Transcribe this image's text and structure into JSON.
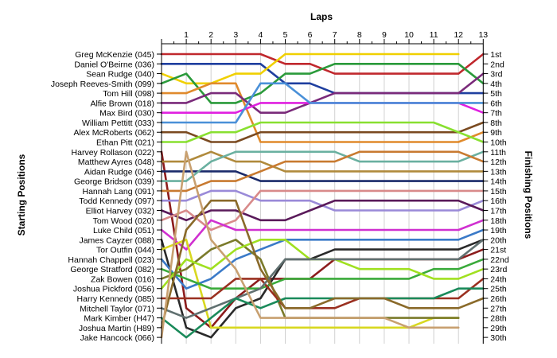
{
  "chart_data": {
    "type": "line",
    "title": "Laps",
    "ylabel_left": "Starting Positions",
    "ylabel_right": "Finishing Positions",
    "laps": [
      1,
      2,
      3,
      4,
      5,
      6,
      7,
      8,
      9,
      10,
      11,
      12,
      13
    ],
    "grid": true,
    "finishing_labels": [
      "1st",
      "2nd",
      "3rd",
      "4th",
      "5th",
      "6th",
      "7th",
      "8th",
      "9th",
      "10th",
      "11th",
      "12th",
      "13th",
      "14th",
      "15th",
      "16th",
      "17th",
      "18th",
      "19th",
      "20th",
      "21st",
      "22nd",
      "23rd",
      "24th",
      "25th",
      "26th",
      "27th",
      "28th",
      "29th",
      "30th"
    ],
    "series": [
      {
        "name": "Greg McKenzie (045)",
        "color": "#c0282d",
        "values": [
          1,
          1,
          1,
          1,
          2,
          2,
          3,
          3,
          3,
          3,
          3,
          3,
          1
        ]
      },
      {
        "name": "Daniel O'Beirne (036)",
        "color": "#1f3f9f",
        "values": [
          2,
          2,
          2,
          2,
          4,
          4,
          5,
          5,
          5,
          5,
          5,
          5,
          5
        ]
      },
      {
        "name": "Sean Rudge (040)",
        "color": "#f0d000",
        "values": [
          4,
          4,
          3,
          3,
          1,
          1,
          1,
          1,
          1,
          1,
          1,
          1,
          null
        ]
      },
      {
        "name": "Joseph Reeves-Smith (099)",
        "color": "#2a9a3a",
        "values": [
          3,
          6,
          6,
          5,
          3,
          3,
          2,
          2,
          2,
          2,
          2,
          2,
          4
        ]
      },
      {
        "name": "Tom Hill (098)",
        "color": "#e08a2c",
        "values": [
          5,
          4,
          4,
          10,
          10,
          10,
          10,
          10,
          10,
          10,
          10,
          10,
          9
        ]
      },
      {
        "name": "Alfie Brown (018)",
        "color": "#7a2a7a",
        "values": [
          6,
          5,
          5,
          7,
          7,
          6,
          5,
          5,
          5,
          5,
          5,
          5,
          3
        ]
      },
      {
        "name": "Max Bird (030)",
        "color": "#e020e0",
        "values": [
          7,
          7,
          7,
          6,
          6,
          6,
          6,
          6,
          6,
          6,
          6,
          6,
          7
        ]
      },
      {
        "name": "William Pettitt (033)",
        "color": "#4a90d8",
        "values": [
          8,
          8,
          8,
          4,
          4,
          6,
          6,
          6,
          6,
          6,
          6,
          6,
          6
        ]
      },
      {
        "name": "Alex McRoberts (062)",
        "color": "#7a4a20",
        "values": [
          9,
          10,
          10,
          9,
          9,
          9,
          9,
          9,
          9,
          9,
          9,
          9,
          8
        ]
      },
      {
        "name": "Ethan Pitt (021)",
        "color": "#88e030",
        "values": [
          10,
          9,
          9,
          8,
          8,
          8,
          8,
          8,
          8,
          8,
          8,
          9,
          10
        ]
      },
      {
        "name": "Harvey Rollason (022)",
        "color": "#8c1c1c",
        "values": [
          27,
          29,
          26,
          24,
          24,
          24,
          22,
          22,
          22,
          22,
          22,
          22,
          21
        ]
      },
      {
        "name": "Matthew Ayres (048)",
        "color": "#b08a3c",
        "values": [
          12,
          11,
          12,
          12,
          13,
          13,
          13,
          13,
          13,
          13,
          13,
          13,
          13
        ]
      },
      {
        "name": "Aidan Rudge (046)",
        "color": "#1a2a6a",
        "values": [
          13,
          13,
          13,
          14,
          14,
          14,
          14,
          14,
          14,
          14,
          14,
          14,
          14
        ]
      },
      {
        "name": "George Bridson (039)",
        "color": "#6ab0a0",
        "values": [
          14,
          12,
          11,
          11,
          11,
          11,
          11,
          12,
          12,
          12,
          12,
          12,
          11
        ]
      },
      {
        "name": "Hannah Lang (091)",
        "color": "#c87a30",
        "values": [
          15,
          14,
          14,
          13,
          12,
          12,
          12,
          11,
          11,
          11,
          11,
          11,
          12
        ]
      },
      {
        "name": "Todd Kennedy (097)",
        "color": "#9a8ad8",
        "values": [
          16,
          15,
          15,
          16,
          16,
          16,
          17,
          17,
          17,
          17,
          17,
          17,
          16
        ]
      },
      {
        "name": "Elliot Harvey (032)",
        "color": "#5a1a5a",
        "values": [
          18,
          17,
          17,
          18,
          18,
          17,
          16,
          16,
          16,
          16,
          16,
          16,
          17
        ]
      },
      {
        "name": "Tom Wood (020)",
        "color": "#d88a8a",
        "values": [
          17,
          19,
          18,
          15,
          15,
          15,
          15,
          15,
          15,
          15,
          15,
          15,
          15
        ]
      },
      {
        "name": "Luke Child (051)",
        "color": "#d030d0",
        "values": [
          21,
          18,
          19,
          19,
          19,
          19,
          19,
          19,
          19,
          19,
          19,
          19,
          18
        ]
      },
      {
        "name": "James Cayzer (088)",
        "color": "#2a2a2a",
        "values": [
          29,
          30,
          27,
          26,
          22,
          22,
          21,
          21,
          21,
          21,
          21,
          21,
          20
        ]
      },
      {
        "name": "Tor Outfin (044)",
        "color": "#d8d820",
        "values": [
          20,
          29,
          29,
          29,
          29,
          29,
          29,
          29,
          29,
          29,
          28,
          28,
          null
        ]
      },
      {
        "name": "Hannah Chappell (023)",
        "color": "#3a7ac8",
        "values": [
          25,
          24,
          22,
          21,
          20,
          20,
          20,
          20,
          20,
          20,
          20,
          20,
          19
        ]
      },
      {
        "name": "George Stratford (082)",
        "color": "#3aaa3a",
        "values": [
          24,
          25,
          25,
          25,
          24,
          24,
          24,
          24,
          24,
          24,
          23,
          23,
          22
        ]
      },
      {
        "name": "Zak Bowen (016)",
        "color": "#7a7a2a",
        "values": [
          23,
          21,
          20,
          22,
          28,
          28,
          28,
          28,
          28,
          28,
          28,
          28,
          null
        ]
      },
      {
        "name": "Joshua Pickford (056)",
        "color": "#a0e020",
        "values": [
          22,
          23,
          21,
          20,
          20,
          22,
          22,
          23,
          23,
          23,
          24,
          24,
          23
        ]
      },
      {
        "name": "Harry Kennedy (085)",
        "color": "#9a3020",
        "values": [
          26,
          26,
          24,
          24,
          27,
          27,
          27,
          26,
          26,
          26,
          26,
          26,
          24
        ]
      },
      {
        "name": "Mitchell Taylor (071)",
        "color": "#607070",
        "values": [
          28,
          27,
          26,
          25,
          22,
          22,
          22,
          22,
          22,
          22,
          22,
          22,
          20
        ]
      },
      {
        "name": "Mark Kimber (H47)",
        "color": "#1a8a5a",
        "values": [
          30,
          28,
          26,
          27,
          26,
          26,
          26,
          26,
          26,
          26,
          26,
          25,
          25
        ]
      },
      {
        "name": "Joshua Martin (H89)",
        "color": "#8a6a2a",
        "values": [
          19,
          16,
          16,
          23,
          27,
          27,
          26,
          26,
          26,
          27,
          27,
          27,
          26
        ]
      },
      {
        "name": "Jake Hancock (066)",
        "color": "#c8a070",
        "values": [
          11,
          20,
          23,
          28,
          28,
          28,
          28,
          28,
          28,
          29,
          29,
          29,
          null
        ]
      }
    ]
  }
}
